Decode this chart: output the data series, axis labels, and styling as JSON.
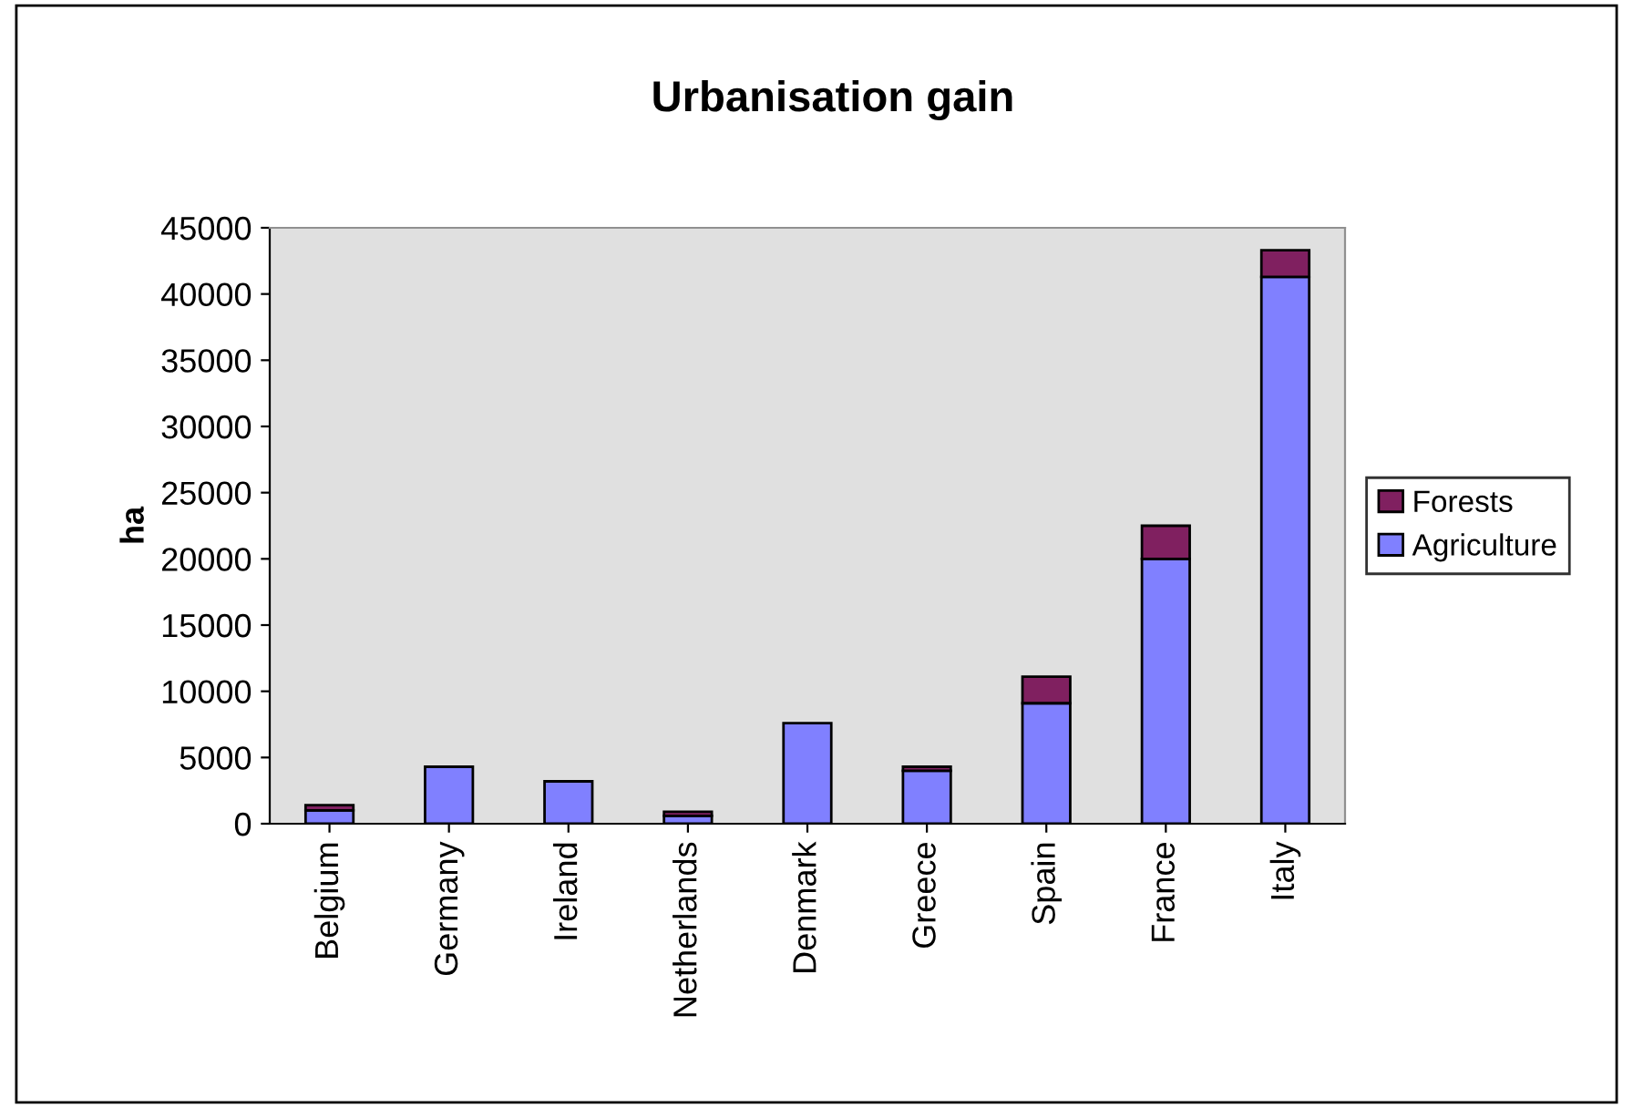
{
  "chart_data": {
    "type": "bar",
    "title": "Urbanisation gain",
    "ylabel": "ha",
    "stacked": true,
    "categories": [
      "Belgium",
      "Germany",
      "Ireland",
      "Netherlands",
      "Denmark",
      "Greece",
      "Spain",
      "France",
      "Italy"
    ],
    "series": [
      {
        "name": "Agriculture",
        "color": "#8080ff",
        "values": [
          1000,
          4300,
          3200,
          600,
          7600,
          4000,
          9100,
          20000,
          41300
        ]
      },
      {
        "name": "Forests",
        "color": "#802060",
        "values": [
          400,
          null,
          null,
          300,
          null,
          300,
          2000,
          2500,
          2000
        ]
      }
    ],
    "ylim": [
      0,
      45000
    ],
    "yticks": [
      0,
      5000,
      10000,
      15000,
      20000,
      25000,
      30000,
      35000,
      40000,
      45000
    ],
    "grid": false,
    "legend": "right"
  }
}
